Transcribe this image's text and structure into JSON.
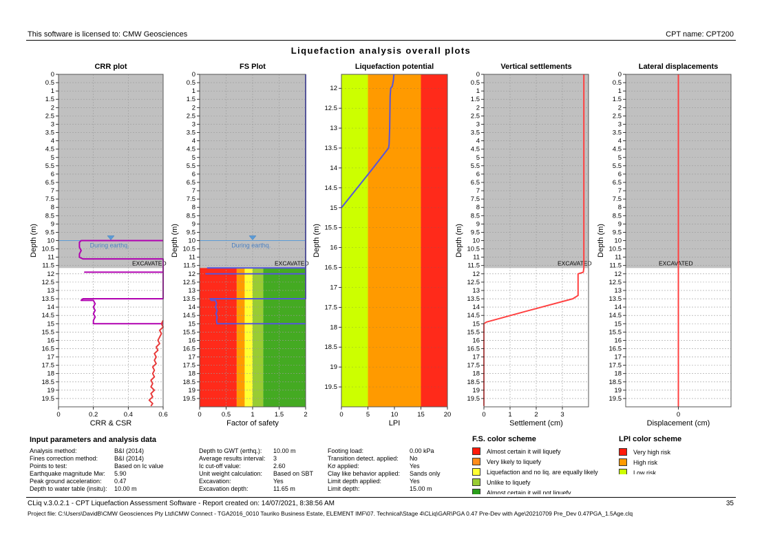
{
  "header": {
    "license": "This software is licensed to: CMW Geosciences",
    "cpt_name": "CPT name: CPT200"
  },
  "title": "Liquefaction analysis overall plots",
  "chart_data": [
    {
      "type": "line",
      "title": "CRR plot",
      "xlabel": "CRR & CSR",
      "ylabel": "Depth (m)",
      "xlim": [
        0,
        0.6
      ],
      "ylim": [
        0,
        20
      ],
      "xticks": [
        "0",
        "0.2",
        "0.4",
        "0.6"
      ],
      "yticks": [
        "0",
        "0.5",
        "1",
        "1.5",
        "2",
        "2.5",
        "3",
        "3.5",
        "4",
        "4.5",
        "5",
        "5.5",
        "6",
        "6.5",
        "7",
        "7.5",
        "8",
        "8.5",
        "9",
        "9.5",
        "10",
        "10.5",
        "11",
        "11.5",
        "12",
        "12.5",
        "13",
        "13.5",
        "14",
        "14.5",
        "15",
        "15.5",
        "16",
        "16.5",
        "17",
        "17.5",
        "18",
        "18.5",
        "19",
        "19.5"
      ],
      "excavated_depth": 11.65,
      "excavated_label": "EXCAVATED",
      "water_table_label": "During earthq.",
      "water_table_depth": 10.0,
      "grid": true,
      "series": [
        {
          "color": "#b000b0",
          "points": [
            [
              0.6,
              10.0
            ],
            [
              0.13,
              10.0
            ],
            [
              0.12,
              10.1
            ],
            [
              0.12,
              10.4
            ],
            [
              0.13,
              10.6
            ],
            [
              0.12,
              10.8
            ],
            [
              0.12,
              11.0
            ],
            [
              0.14,
              11.1
            ],
            [
              0.6,
              11.1
            ],
            [
              0.6,
              11.9
            ],
            [
              0.15,
              11.9
            ],
            [
              0.6,
              11.9
            ],
            [
              0.6,
              13.5
            ],
            [
              0.14,
              13.5
            ],
            [
              0.13,
              13.6
            ],
            [
              0.2,
              13.6
            ],
            [
              0.21,
              13.8
            ],
            [
              0.2,
              14.0
            ],
            [
              0.21,
              14.2
            ],
            [
              0.2,
              14.4
            ],
            [
              0.21,
              14.6
            ],
            [
              0.2,
              14.8
            ],
            [
              0.2,
              15.0
            ],
            [
              0.6,
              15.0
            ]
          ]
        },
        {
          "color": "#e83a3a",
          "points": [
            [
              0.6,
              14.8
            ],
            [
              0.59,
              15.0
            ],
            [
              0.6,
              15.2
            ],
            [
              0.58,
              15.4
            ],
            [
              0.59,
              15.6
            ],
            [
              0.58,
              15.8
            ],
            [
              0.57,
              16.0
            ],
            [
              0.58,
              16.2
            ],
            [
              0.56,
              16.4
            ],
            [
              0.57,
              16.6
            ],
            [
              0.55,
              16.8
            ],
            [
              0.56,
              17.0
            ],
            [
              0.55,
              17.2
            ],
            [
              0.56,
              17.4
            ],
            [
              0.54,
              17.6
            ],
            [
              0.55,
              17.8
            ],
            [
              0.54,
              18.0
            ],
            [
              0.55,
              18.2
            ],
            [
              0.53,
              18.4
            ],
            [
              0.54,
              18.6
            ],
            [
              0.53,
              18.8
            ],
            [
              0.55,
              19.0
            ],
            [
              0.53,
              19.2
            ],
            [
              0.54,
              19.4
            ],
            [
              0.52,
              19.6
            ],
            [
              0.54,
              19.8
            ],
            [
              0.53,
              19.95
            ]
          ]
        }
      ]
    },
    {
      "type": "line",
      "title": "FS Plot",
      "xlabel": "Factor of safety",
      "ylabel": "Depth (m)",
      "xlim": [
        0,
        2
      ],
      "ylim": [
        0,
        20
      ],
      "xticks": [
        "0",
        "0.5",
        "1",
        "1.5",
        "2"
      ],
      "yticks": [
        "0",
        "0.5",
        "1",
        "1.5",
        "2",
        "2.5",
        "3",
        "3.5",
        "4",
        "4.5",
        "5",
        "5.5",
        "6",
        "6.5",
        "7",
        "7.5",
        "8",
        "8.5",
        "9",
        "9.5",
        "10",
        "10.5",
        "11",
        "11.5",
        "12",
        "12.5",
        "13",
        "13.5",
        "14",
        "14.5",
        "15",
        "15.5",
        "16",
        "16.5",
        "17",
        "17.5",
        "18",
        "18.5",
        "19",
        "19.5"
      ],
      "excavated_depth": 11.65,
      "excavated_label": "EXCAVATED",
      "water_table_label": "During earthq.",
      "water_table_depth": 10.0,
      "grid": true,
      "bands": [
        {
          "from": 0,
          "to": 0.7,
          "color": "#ff2a1a"
        },
        {
          "from": 0.7,
          "to": 0.85,
          "color": "#ff9a00"
        },
        {
          "from": 0.85,
          "to": 1.0,
          "color": "#ffff33"
        },
        {
          "from": 1.0,
          "to": 1.2,
          "color": "#99cc33"
        },
        {
          "from": 1.2,
          "to": 2.0,
          "color": "#44aa22"
        }
      ],
      "series": [
        {
          "color": "#5555dd",
          "points": [
            [
              2,
              0
            ],
            [
              2,
              11.65
            ],
            [
              0.15,
              11.65
            ],
            [
              2,
              11.65
            ],
            [
              2,
              12.0
            ],
            [
              0.12,
              12.0
            ],
            [
              2,
              12.0
            ],
            [
              2,
              13.5
            ],
            [
              0.2,
              13.5
            ],
            [
              0.22,
              13.6
            ],
            [
              0.3,
              13.6
            ],
            [
              0.32,
              13.8
            ],
            [
              0.3,
              14.0
            ],
            [
              0.33,
              14.2
            ],
            [
              0.31,
              14.4
            ],
            [
              0.33,
              14.6
            ],
            [
              0.32,
              14.8
            ],
            [
              0.33,
              15.0
            ],
            [
              2,
              15.0
            ]
          ]
        }
      ]
    },
    {
      "type": "line",
      "title": "Liquefaction potential",
      "xlabel": "LPI",
      "ylabel": "Depth (m)",
      "xlim": [
        0,
        20
      ],
      "ylim": [
        11.65,
        20
      ],
      "xticks": [
        "0",
        "5",
        "10",
        "15",
        "20"
      ],
      "yticks": [
        "12",
        "12.5",
        "13",
        "13.5",
        "14",
        "14.5",
        "15",
        "15.5",
        "16",
        "16.5",
        "17",
        "17.5",
        "18",
        "18.5",
        "19",
        "19.5"
      ],
      "bands": [
        {
          "from": 0,
          "to": 5,
          "color": "#ccff00"
        },
        {
          "from": 5,
          "to": 15,
          "color": "#ff9a00"
        },
        {
          "from": 15,
          "to": 20,
          "color": "#ff2a1a"
        }
      ],
      "series": [
        {
          "color": "#5555dd",
          "points": [
            [
              9.9,
              11.65
            ],
            [
              9.8,
              11.8
            ],
            [
              9.6,
              11.95
            ],
            [
              9.3,
              12.0
            ],
            [
              9.2,
              12.2
            ],
            [
              9.1,
              13.0
            ],
            [
              9.0,
              13.4
            ],
            [
              8.9,
              13.5
            ],
            [
              6.0,
              14.0
            ],
            [
              3.0,
              14.5
            ],
            [
              0,
              15.0
            ]
          ]
        }
      ]
    },
    {
      "type": "line",
      "title": "Vertical settlements",
      "xlabel": "Settlement (cm)",
      "ylabel": "Depth (m)",
      "xlim": [
        0,
        4
      ],
      "ylim": [
        0,
        20
      ],
      "xticks": [
        "0",
        "1",
        "2",
        "3"
      ],
      "yticks": [
        "0",
        "0.5",
        "1",
        "1.5",
        "2",
        "2.5",
        "3",
        "3.5",
        "4",
        "4.5",
        "5",
        "5.5",
        "6",
        "6.5",
        "7",
        "7.5",
        "8",
        "8.5",
        "9",
        "9.5",
        "10",
        "10.5",
        "11",
        "11.5",
        "12",
        "12.5",
        "13",
        "13.5",
        "14",
        "14.5",
        "15",
        "15.5",
        "16",
        "16.5",
        "17",
        "17.5",
        "18",
        "18.5",
        "19",
        "19.5"
      ],
      "excavated_depth": 11.65,
      "excavated_label": "EXCAVATED",
      "grid": true,
      "series": [
        {
          "color": "#ff4040",
          "points": [
            [
              3.82,
              0
            ],
            [
              3.82,
              11.65
            ],
            [
              3.8,
              11.9
            ],
            [
              3.6,
              12.0
            ],
            [
              3.6,
              13.3
            ],
            [
              3.4,
              13.5
            ],
            [
              1.5,
              14.3
            ],
            [
              0.1,
              14.9
            ],
            [
              0,
              15.0
            ],
            [
              0,
              19.95
            ]
          ]
        }
      ]
    },
    {
      "type": "line",
      "title": "Lateral displacements",
      "xlabel": "Displacement (cm)",
      "ylabel": "Depth (m)",
      "xlim": [
        -1,
        1
      ],
      "ylim": [
        0,
        20
      ],
      "xticks": [
        "0"
      ],
      "yticks": [
        "0",
        "0.5",
        "1",
        "1.5",
        "2",
        "2.5",
        "3",
        "3.5",
        "4",
        "4.5",
        "5",
        "5.5",
        "6",
        "6.5",
        "7",
        "7.5",
        "8",
        "8.5",
        "9",
        "9.5",
        "10",
        "10.5",
        "11",
        "11.5",
        "12",
        "12.5",
        "13",
        "13.5",
        "14",
        "14.5",
        "15",
        "15.5",
        "16",
        "16.5",
        "17",
        "17.5",
        "18",
        "18.5",
        "19",
        "19.5"
      ],
      "excavated_depth": 11.65,
      "excavated_label": "EXCAVATED",
      "grid": true,
      "series": [
        {
          "color": "#ff4040",
          "points": [
            [
              0,
              0
            ],
            [
              0,
              20
            ]
          ]
        }
      ]
    }
  ],
  "params": {
    "title": "Input parameters and analysis data",
    "col1": [
      [
        "Analysis method:",
        "B&I (2014)"
      ],
      [
        "Fines correction method:",
        "B&I (2014)"
      ],
      [
        "Points to test:",
        "Based on Ic value"
      ],
      [
        "Earthquake magnitude Mw:",
        "5.90"
      ],
      [
        "Peak ground acceleration:",
        "0.47"
      ],
      [
        "Depth to water table (insitu):",
        "10.00 m"
      ]
    ],
    "col2": [
      [
        "Depth to GWT (erthq.):",
        "10.00 m"
      ],
      [
        "Average results interval:",
        "3"
      ],
      [
        "Ic cut-off value:",
        "2.60"
      ],
      [
        "Unit weight calculation:",
        "Based on SBT"
      ],
      [
        "Excavation:",
        "Yes"
      ],
      [
        "Excavation depth:",
        "11.65 m"
      ]
    ],
    "col3": [
      [
        "Footing load:",
        "0.00 kPa"
      ],
      [
        "Transition detect. applied:",
        "No"
      ],
      [
        "Kσ applied:",
        "Yes"
      ],
      [
        "Clay like behavior applied:",
        "Sands only"
      ],
      [
        "Limit depth applied:",
        "Yes"
      ],
      [
        "Limit depth:",
        "15.00 m"
      ]
    ]
  },
  "fs_scheme": {
    "title": "F.S. color scheme",
    "items": [
      {
        "color": "#ff1a0a",
        "label": "Almost certain it will liquefy"
      },
      {
        "color": "#ff8c1a",
        "label": "Very likely to liquefy"
      },
      {
        "color": "#ffff33",
        "label": "Liquefaction and no liq. are equally likely"
      },
      {
        "color": "#99cc33",
        "label": "Unlike to liquefy"
      },
      {
        "color": "#2a9e1a",
        "label": "Almost certain it will not liquefy"
      }
    ]
  },
  "lpi_scheme": {
    "title": "LPI color scheme",
    "items": [
      {
        "color": "#ff1a0a",
        "label": "Very high risk"
      },
      {
        "color": "#ff9a00",
        "label": "High risk"
      },
      {
        "color": "#ccff00",
        "label": "Low risk"
      }
    ]
  },
  "footer": {
    "left": "CLiq v.3.0.2.1 - CPT Liquefaction Assessment Software - Report created on: 14/07/2021, 8:38:56 AM",
    "page": "35",
    "project": "Project file: C:\\Users\\DavidB\\CMW Geosciences Pty Ltd\\CMW Connect - TGA2016_0010 Tauriko Business Estate, ELEMENT IMF\\07. Technical\\Stage 4\\CLiq\\GAR\\PGA 0.47 Pre-Dev with Age\\20210709 Pre_Dev 0.47PGA_1.5Age.clq"
  }
}
